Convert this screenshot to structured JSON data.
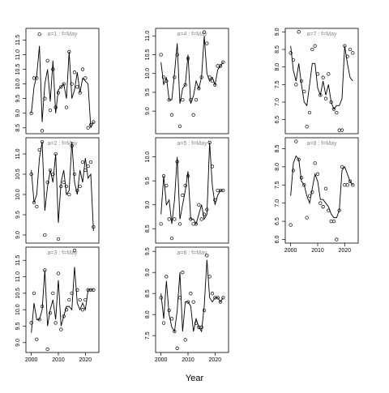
{
  "xlabel": "Year",
  "chart_data": [
    {
      "type": "line",
      "title": "a=1 : f=May",
      "xlim": [
        1998,
        2025
      ],
      "ylim": [
        8.3,
        11.9
      ],
      "yticks": [
        8.5,
        {
          "value": 9,
          "label": "9.0"
        },
        9.5,
        {
          "value": 10,
          "label": "10.0"
        },
        10.5,
        {
          "value": 11,
          "label": "11.0"
        },
        11.5
      ],
      "x": [
        2000,
        2001,
        2002,
        2003,
        2004,
        2005,
        2006,
        2007,
        2008,
        2009,
        2010,
        2011,
        2012,
        2013,
        2014,
        2015,
        2016,
        2017,
        2018,
        2019,
        2020,
        2021,
        2022,
        2023
      ],
      "series": [
        {
          "style": "points",
          "color": "#000000",
          "values": [
            9.0,
            10.2,
            10.2,
            11.7,
            8.4,
            9.5,
            10.8,
            9.1,
            10.5,
            9.2,
            9.7,
            9.9,
            10.0,
            9.2,
            11.1,
            10.0,
            10.4,
            9.9,
            9.7,
            10.5,
            10.2,
            8.5,
            8.6,
            8.7
          ]
        },
        {
          "style": "line",
          "color": "#000000",
          "values": [
            9.0,
            9.9,
            10.3,
            11.3,
            8.7,
            10.0,
            10.5,
            9.4,
            10.8,
            9.0,
            9.8,
            9.9,
            10.0,
            9.5,
            11.1,
            9.5,
            9.8,
            10.4,
            9.7,
            10.2,
            10.1,
            10.0,
            8.5,
            8.7
          ]
        }
      ]
    },
    {
      "type": "line",
      "title": "a=2 : f=May",
      "xlim": [
        1998,
        2025
      ],
      "ylim": [
        8.8,
        11.4
      ],
      "yticks": [
        {
          "value": 9,
          "label": "9.0"
        },
        9.5,
        {
          "value": 10,
          "label": "10.0"
        },
        10.5,
        {
          "value": 11,
          "label": "11.0"
        }
      ],
      "x": [
        2000,
        2001,
        2002,
        2003,
        2004,
        2005,
        2006,
        2007,
        2008,
        2009,
        2010,
        2011,
        2012,
        2013,
        2014,
        2015,
        2016,
        2017,
        2018,
        2019,
        2020,
        2021,
        2022,
        2023
      ],
      "series": [
        {
          "style": "points",
          "color": "#000000",
          "values": [
            10.5,
            9.8,
            9.7,
            11.1,
            11.3,
            9.0,
            10.3,
            10.6,
            10.5,
            11.0,
            8.9,
            10.2,
            10.3,
            10.2,
            10.0,
            11.2,
            10.5,
            10.1,
            10.2,
            10.8,
            10.6,
            10.7,
            10.8,
            9.2
          ]
        },
        {
          "style": "line",
          "color": "#000000",
          "values": [
            10.6,
            9.8,
            10.0,
            10.9,
            11.3,
            9.6,
            10.2,
            10.6,
            10.3,
            11.0,
            9.3,
            10.3,
            10.6,
            10.0,
            10.1,
            11.3,
            10.3,
            10.0,
            10.6,
            10.3,
            10.9,
            10.4,
            10.5,
            9.1
          ]
        }
      ]
    },
    {
      "type": "line",
      "title": "a=3 : f=May",
      "xlim": [
        1998,
        2025
      ],
      "xticks": [
        2000,
        2010,
        2020
      ],
      "ylim": [
        8.7,
        11.9
      ],
      "yticks": [
        {
          "value": 9,
          "label": "9.0"
        },
        9.5,
        {
          "value": 10,
          "label": "10.0"
        },
        10.5,
        {
          "value": 11,
          "label": "11.0"
        },
        11.5
      ],
      "x": [
        2000,
        2001,
        2002,
        2003,
        2004,
        2005,
        2006,
        2007,
        2008,
        2009,
        2010,
        2011,
        2012,
        2013,
        2014,
        2015,
        2016,
        2017,
        2018,
        2019,
        2020,
        2021,
        2022,
        2023
      ],
      "series": [
        {
          "style": "points",
          "color": "#000000",
          "values": [
            9.6,
            10.5,
            9.1,
            9.7,
            10.1,
            11.2,
            8.8,
            9.9,
            10.5,
            9.6,
            11.1,
            9.4,
            9.8,
            10.0,
            10.3,
            10.5,
            11.8,
            10.6,
            10.3,
            10.0,
            10.3,
            10.6,
            10.6,
            10.6
          ]
        },
        {
          "style": "line",
          "color": "#000000",
          "values": [
            9.3,
            10.2,
            9.7,
            9.7,
            10.0,
            11.2,
            9.5,
            10.0,
            10.3,
            9.7,
            10.9,
            9.5,
            9.8,
            10.1,
            10.1,
            10.0,
            11.3,
            10.2,
            10.0,
            10.2,
            10.0,
            10.6,
            10.6,
            10.6
          ]
        }
      ]
    },
    {
      "type": "line",
      "title": "a=4 : f=May",
      "xlim": [
        1998,
        2025
      ],
      "ylim": [
        8.4,
        11.2
      ],
      "yticks": [
        {
          "value": 9,
          "label": "9.0"
        },
        9.5,
        {
          "value": 10,
          "label": "10.0"
        },
        10.5,
        {
          "value": 11,
          "label": "11.0"
        }
      ],
      "x": [
        2000,
        2001,
        2002,
        2003,
        2004,
        2005,
        2006,
        2007,
        2008,
        2009,
        2010,
        2011,
        2012,
        2013,
        2014,
        2015,
        2016,
        2017,
        2018,
        2019,
        2020,
        2021,
        2022,
        2023
      ],
      "series": [
        {
          "style": "points",
          "color": "#000000",
          "values": [
            10.5,
            9.9,
            9.8,
            9.3,
            8.9,
            9.9,
            10.5,
            8.6,
            9.3,
            9.7,
            10.4,
            9.3,
            8.9,
            9.3,
            9.6,
            9.9,
            11.1,
            10.8,
            9.9,
            9.8,
            9.7,
            10.2,
            10.2,
            10.3
          ]
        },
        {
          "style": "line",
          "color": "#000000",
          "values": [
            10.3,
            9.7,
            9.9,
            9.3,
            9.3,
            10.0,
            10.8,
            9.2,
            9.6,
            9.7,
            10.5,
            9.2,
            9.4,
            9.8,
            9.6,
            9.9,
            11.0,
            10.0,
            9.8,
            9.9,
            9.7,
            10.1,
            10.2,
            10.3
          ]
        }
      ]
    },
    {
      "type": "line",
      "title": "a=5 : f=May",
      "xlim": [
        1998,
        2025
      ],
      "ylim": [
        8.2,
        10.4
      ],
      "yticks": [
        8.5,
        {
          "value": 9,
          "label": "9.0"
        },
        9.5,
        {
          "value": 10,
          "label": "10.0"
        }
      ],
      "x": [
        2000,
        2001,
        2002,
        2003,
        2004,
        2005,
        2006,
        2007,
        2008,
        2009,
        2010,
        2011,
        2012,
        2013,
        2014,
        2015,
        2016,
        2017,
        2018,
        2019,
        2020,
        2021,
        2022,
        2023
      ],
      "series": [
        {
          "style": "points",
          "color": "#000000",
          "values": [
            8.6,
            9.6,
            9.4,
            8.7,
            8.3,
            8.7,
            9.9,
            8.6,
            9.2,
            9.4,
            9.6,
            8.7,
            8.6,
            8.6,
            9.0,
            8.7,
            8.8,
            8.9,
            10.3,
            9.8,
            9.1,
            9.3,
            9.3,
            9.3
          ]
        },
        {
          "style": "line",
          "color": "#000000",
          "values": [
            8.8,
            9.6,
            9.0,
            9.1,
            8.6,
            9.1,
            10.0,
            8.7,
            9.0,
            9.3,
            9.7,
            8.7,
            8.7,
            8.6,
            8.8,
            9.0,
            8.7,
            8.8,
            10.3,
            9.4,
            9.0,
            9.2,
            9.3,
            9.3
          ]
        }
      ]
    },
    {
      "type": "line",
      "title": "a=6 : f=May",
      "xlim": [
        1998,
        2025
      ],
      "xticks": [
        2000,
        2010,
        2020
      ],
      "ylim": [
        7.1,
        9.6
      ],
      "yticks": [
        7.5,
        {
          "value": 8,
          "label": "8.0"
        },
        8.5,
        {
          "value": 9,
          "label": "9.0"
        },
        9.5
      ],
      "x": [
        2000,
        2001,
        2002,
        2003,
        2004,
        2005,
        2006,
        2007,
        2008,
        2009,
        2010,
        2011,
        2012,
        2013,
        2014,
        2015,
        2016,
        2017,
        2018,
        2019,
        2020,
        2021,
        2022,
        2023
      ],
      "series": [
        {
          "style": "points",
          "color": "#000000",
          "values": [
            8.4,
            7.8,
            8.9,
            8.1,
            7.9,
            7.6,
            7.2,
            8.4,
            9.0,
            7.4,
            8.3,
            8.5,
            8.3,
            7.8,
            7.7,
            7.7,
            8.1,
            9.4,
            8.9,
            8.5,
            8.4,
            8.4,
            8.3,
            8.4
          ]
        },
        {
          "style": "line",
          "color": "#000000",
          "values": [
            8.5,
            7.9,
            8.8,
            8.0,
            7.7,
            7.6,
            8.1,
            9.0,
            7.6,
            8.3,
            8.3,
            8.2,
            7.6,
            7.9,
            7.7,
            7.6,
            8.2,
            9.3,
            8.4,
            8.3,
            8.4,
            8.4,
            8.3,
            8.4
          ]
        }
      ]
    },
    {
      "type": "line",
      "title": "a=7 : f=May",
      "xlim": [
        1998,
        2025
      ],
      "ylim": [
        6.1,
        9.1
      ],
      "yticks": [
        6.5,
        {
          "value": 7,
          "label": "7.0"
        },
        7.5,
        {
          "value": 8,
          "label": "8.0"
        },
        8.5,
        {
          "value": 9,
          "label": "9.0"
        }
      ],
      "x": [
        2000,
        2001,
        2002,
        2003,
        2004,
        2005,
        2006,
        2007,
        2008,
        2009,
        2010,
        2011,
        2012,
        2013,
        2014,
        2015,
        2016,
        2017,
        2018,
        2019,
        2020,
        2021,
        2022,
        2023
      ],
      "series": [
        {
          "style": "points",
          "color": "#000000",
          "values": [
            8.4,
            8.2,
            7.5,
            9.0,
            7.6,
            7.3,
            6.3,
            6.7,
            8.5,
            8.6,
            7.8,
            7.2,
            7.7,
            7.1,
            7.8,
            7.0,
            6.8,
            6.7,
            6.2,
            6.2,
            8.6,
            8.3,
            8.5,
            8.4
          ]
        },
        {
          "style": "line",
          "color": "#000000",
          "values": [
            8.6,
            7.9,
            7.6,
            8.1,
            7.5,
            7.0,
            6.9,
            7.5,
            8.1,
            8.1,
            7.4,
            7.2,
            7.6,
            7.2,
            7.5,
            7.0,
            6.8,
            6.9,
            6.9,
            7.1,
            8.6,
            8.1,
            7.7,
            7.6
          ]
        }
      ]
    },
    {
      "type": "line",
      "title": "a=8 : f=May",
      "xlim": [
        1998,
        2025
      ],
      "xticks": [
        2000,
        2010,
        2020
      ],
      "ylim": [
        5.9,
        8.8
      ],
      "yticks": [
        {
          "value": 6,
          "label": "6.0"
        },
        6.5,
        {
          "value": 7,
          "label": "7.0"
        },
        7.5,
        {
          "value": 8,
          "label": "8.0"
        },
        8.5
      ],
      "x": [
        2000,
        2001,
        2002,
        2003,
        2004,
        2005,
        2006,
        2007,
        2008,
        2009,
        2010,
        2011,
        2012,
        2013,
        2014,
        2015,
        2016,
        2017,
        2018,
        2019,
        2020,
        2021,
        2022,
        2023
      ],
      "series": [
        {
          "style": "points",
          "color": "#000000",
          "values": [
            6.4,
            7.9,
            8.7,
            8.2,
            7.7,
            7.5,
            6.6,
            7.2,
            7.3,
            8.1,
            7.8,
            7.0,
            6.9,
            7.4,
            6.8,
            6.5,
            6.5,
            6.0,
            6.8,
            8.0,
            7.5,
            7.5,
            7.6,
            7.5
          ]
        },
        {
          "style": "line",
          "color": "#000000",
          "values": [
            7.2,
            8.1,
            8.3,
            8.2,
            7.6,
            7.5,
            7.2,
            7.0,
            7.4,
            7.8,
            7.6,
            7.1,
            7.1,
            7.0,
            6.9,
            6.7,
            6.6,
            6.6,
            6.8,
            7.9,
            8.0,
            7.8,
            7.6,
            7.5
          ]
        }
      ]
    }
  ]
}
